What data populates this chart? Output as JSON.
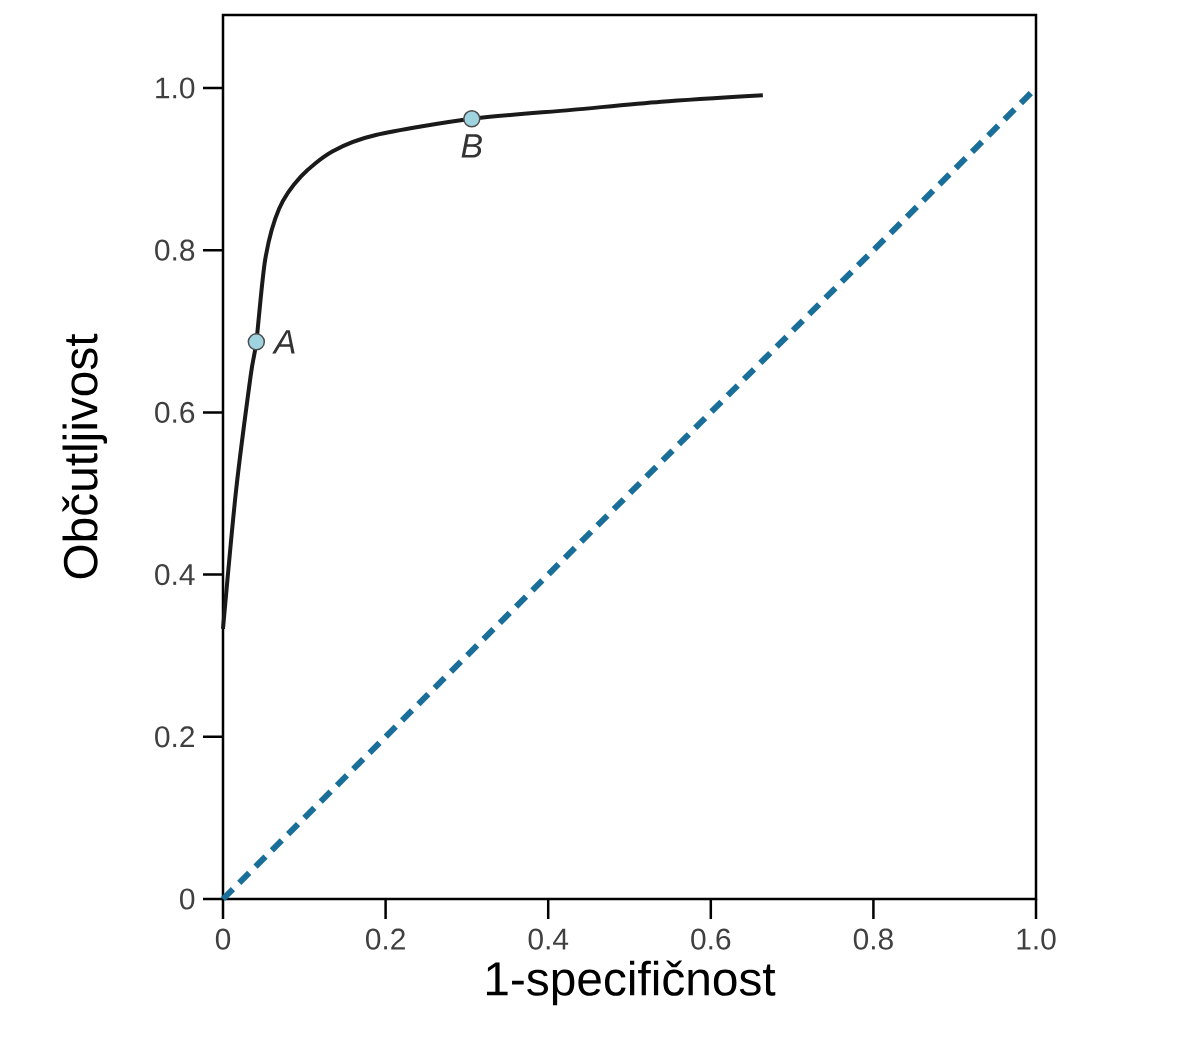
{
  "chart_data": {
    "type": "line",
    "xlabel": "1-specifičnost",
    "ylabel": "Občutljivost",
    "xlim": [
      0,
      1
    ],
    "ylim": [
      0,
      1.09
    ],
    "xticks": [
      0,
      0.2,
      0.4,
      0.6,
      0.8,
      {
        "value": 1,
        "label": "1.0"
      }
    ],
    "yticks": [
      0,
      0.2,
      0.4,
      0.6,
      0.8,
      {
        "value": 1,
        "label": "1.0"
      }
    ],
    "grid": false,
    "series": [
      {
        "color": "#1a1a1a",
        "line_style": "solid",
        "marker": "none",
        "x": [
          0,
          0.016,
          0.034,
          0.041,
          0.052,
          0.069,
          0.096,
          0.135,
          0.188,
          0.306,
          0.429,
          0.539,
          0.664
        ],
        "values": [
          0.333,
          0.503,
          0.645,
          0.687,
          0.789,
          0.851,
          0.891,
          0.922,
          0.942,
          0.962,
          0.973,
          0.983,
          0.991
        ]
      },
      {
        "type": "line",
        "color": "#1a6f9a",
        "line_style": "dashed",
        "marker": "none",
        "x": [
          0,
          1
        ],
        "values": [
          0,
          1
        ]
      },
      {
        "type": "scatter",
        "color": "#9fd3e0",
        "marker": "circle",
        "x": [
          0.041,
          0.306
        ],
        "values": [
          0.687,
          0.962
        ]
      }
    ],
    "annotations": [
      {
        "text": "A",
        "x": 0.041,
        "y": 0.687
      },
      {
        "text": "B",
        "x": 0.306,
        "y": 0.962
      }
    ]
  }
}
